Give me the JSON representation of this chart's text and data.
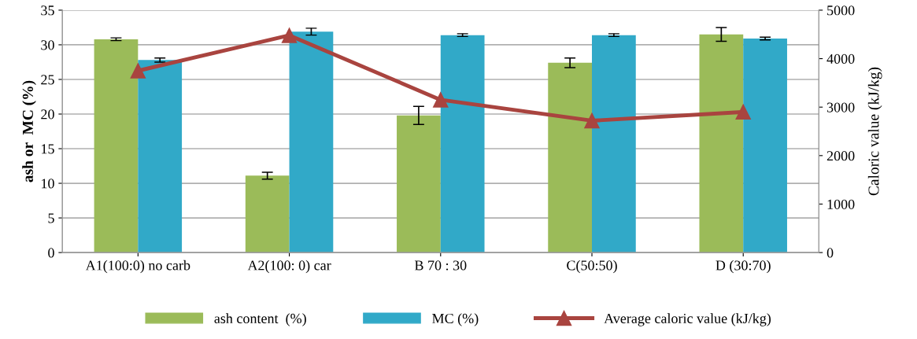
{
  "chart_data": {
    "type": "bar",
    "ylabel": "ash or  MC (%)",
    "y2label": "Caloric value (kJ/kg)",
    "categories": [
      "A1(100:0) no carb",
      "A2(100: 0) car",
      "B 70 : 30",
      "C(50:50)",
      "D (30:70)"
    ],
    "series": [
      {
        "name": "ash content  (%)",
        "color": "#9bbb59",
        "values": [
          30.8,
          11.1,
          19.8,
          27.4,
          31.5
        ],
        "errors": [
          0.2,
          0.5,
          1.3,
          0.7,
          1.0
        ]
      },
      {
        "name": "MC (%)",
        "color": "#31a9c8",
        "values": [
          27.8,
          31.9,
          31.4,
          31.4,
          30.9
        ],
        "errors": [
          0.3,
          0.5,
          0.2,
          0.2,
          0.2
        ]
      },
      {
        "name": "Average caloric value (kJ/kg)",
        "type": "line",
        "axis": "y2",
        "color": "#a9443f",
        "marker": "triangle",
        "values": [
          3750,
          4480,
          3150,
          2720,
          2900
        ]
      }
    ],
    "ylim": [
      0,
      35
    ],
    "yticks": [
      0,
      5,
      10,
      15,
      20,
      25,
      30,
      35
    ],
    "y2lim": [
      0,
      5000
    ],
    "y2ticks": [
      0,
      1000,
      2000,
      3000,
      4000,
      5000
    ],
    "grid": "y",
    "legend": "bottom"
  }
}
